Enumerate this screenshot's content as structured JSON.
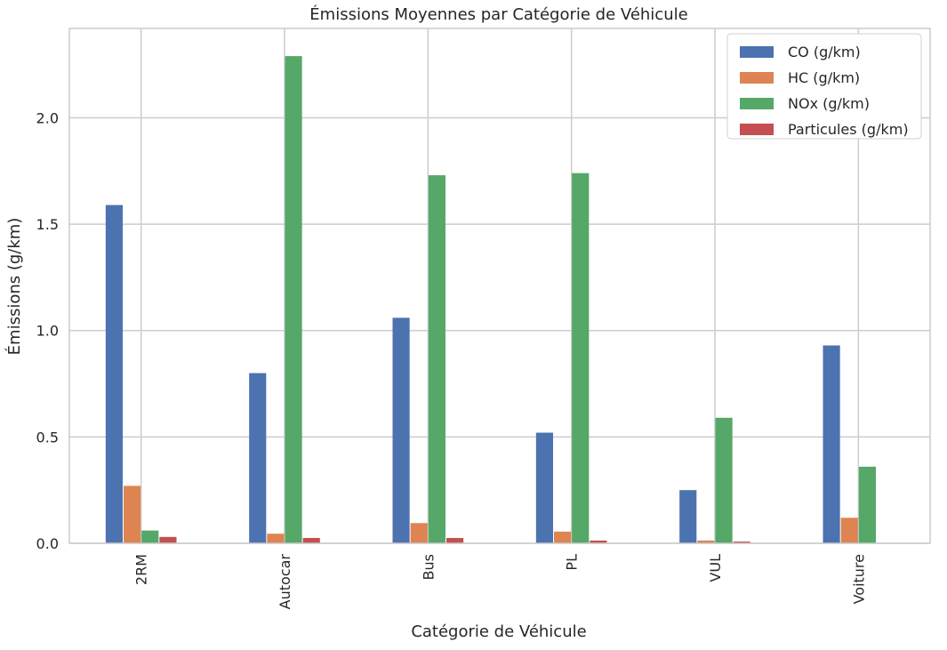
{
  "chart_data": {
    "type": "bar",
    "title": "Émissions Moyennes par Catégorie de Véhicule",
    "xlabel": "Catégorie de Véhicule",
    "ylabel": "Émissions (g/km)",
    "categories": [
      "2RM",
      "Autocar",
      "Bus",
      "PL",
      "VUL",
      "Voiture"
    ],
    "series": [
      {
        "name": "CO (g/km)",
        "color": "#4c72b0",
        "values": [
          1.59,
          0.8,
          1.06,
          0.52,
          0.25,
          0.93
        ]
      },
      {
        "name": "HC (g/km)",
        "color": "#dd8452",
        "values": [
          0.27,
          0.045,
          0.095,
          0.055,
          0.013,
          0.12
        ]
      },
      {
        "name": "NOx (g/km)",
        "color": "#55a868",
        "values": [
          0.06,
          2.29,
          1.73,
          1.74,
          0.59,
          0.36
        ]
      },
      {
        "name": "Particules (g/km)",
        "color": "#c44e52",
        "values": [
          0.03,
          0.025,
          0.025,
          0.013,
          0.008,
          0.002
        ]
      }
    ],
    "ylim": [
      0,
      2.42
    ],
    "yticks": [
      0.0,
      0.5,
      1.0,
      1.5,
      2.0
    ],
    "ytick_labels": [
      "0.0",
      "0.5",
      "1.0",
      "1.5",
      "2.0"
    ],
    "grid": true,
    "legend_position": "top-right"
  }
}
